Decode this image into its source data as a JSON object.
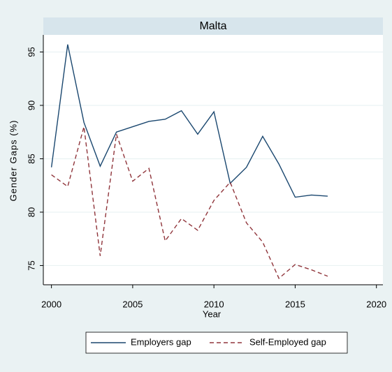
{
  "chart_data": {
    "type": "line",
    "title": "Malta",
    "xlabel": "Year",
    "ylabel": "Gender Gaps (%)",
    "x": [
      2000,
      2001,
      2002,
      2003,
      2004,
      2005,
      2006,
      2007,
      2008,
      2009,
      2010,
      2011,
      2012,
      2013,
      2014,
      2015,
      2016,
      2017
    ],
    "series": [
      {
        "name": "Employers gap",
        "color": "#1a476f",
        "dash": false,
        "values": [
          84.2,
          95.7,
          88.4,
          84.3,
          87.5,
          88.0,
          88.5,
          88.7,
          89.5,
          87.3,
          89.4,
          82.7,
          84.2,
          87.1,
          84.5,
          81.4,
          81.6,
          81.5
        ]
      },
      {
        "name": "Self-Employed gap",
        "color": "#90353b",
        "dash": true,
        "values": [
          83.5,
          82.4,
          88.0,
          75.9,
          87.3,
          82.9,
          84.1,
          77.3,
          79.4,
          78.3,
          81.1,
          82.8,
          79.0,
          77.2,
          73.8,
          75.1,
          74.6,
          74.0
        ]
      }
    ],
    "xlim": [
      1999.5,
      2020.4
    ],
    "xticks": [
      2000,
      2005,
      2010,
      2015,
      2020
    ],
    "ylim": [
      73.2,
      96.6
    ],
    "yticks": [
      75,
      80,
      85,
      90,
      95
    ],
    "grid": true,
    "legend": "bottom"
  }
}
